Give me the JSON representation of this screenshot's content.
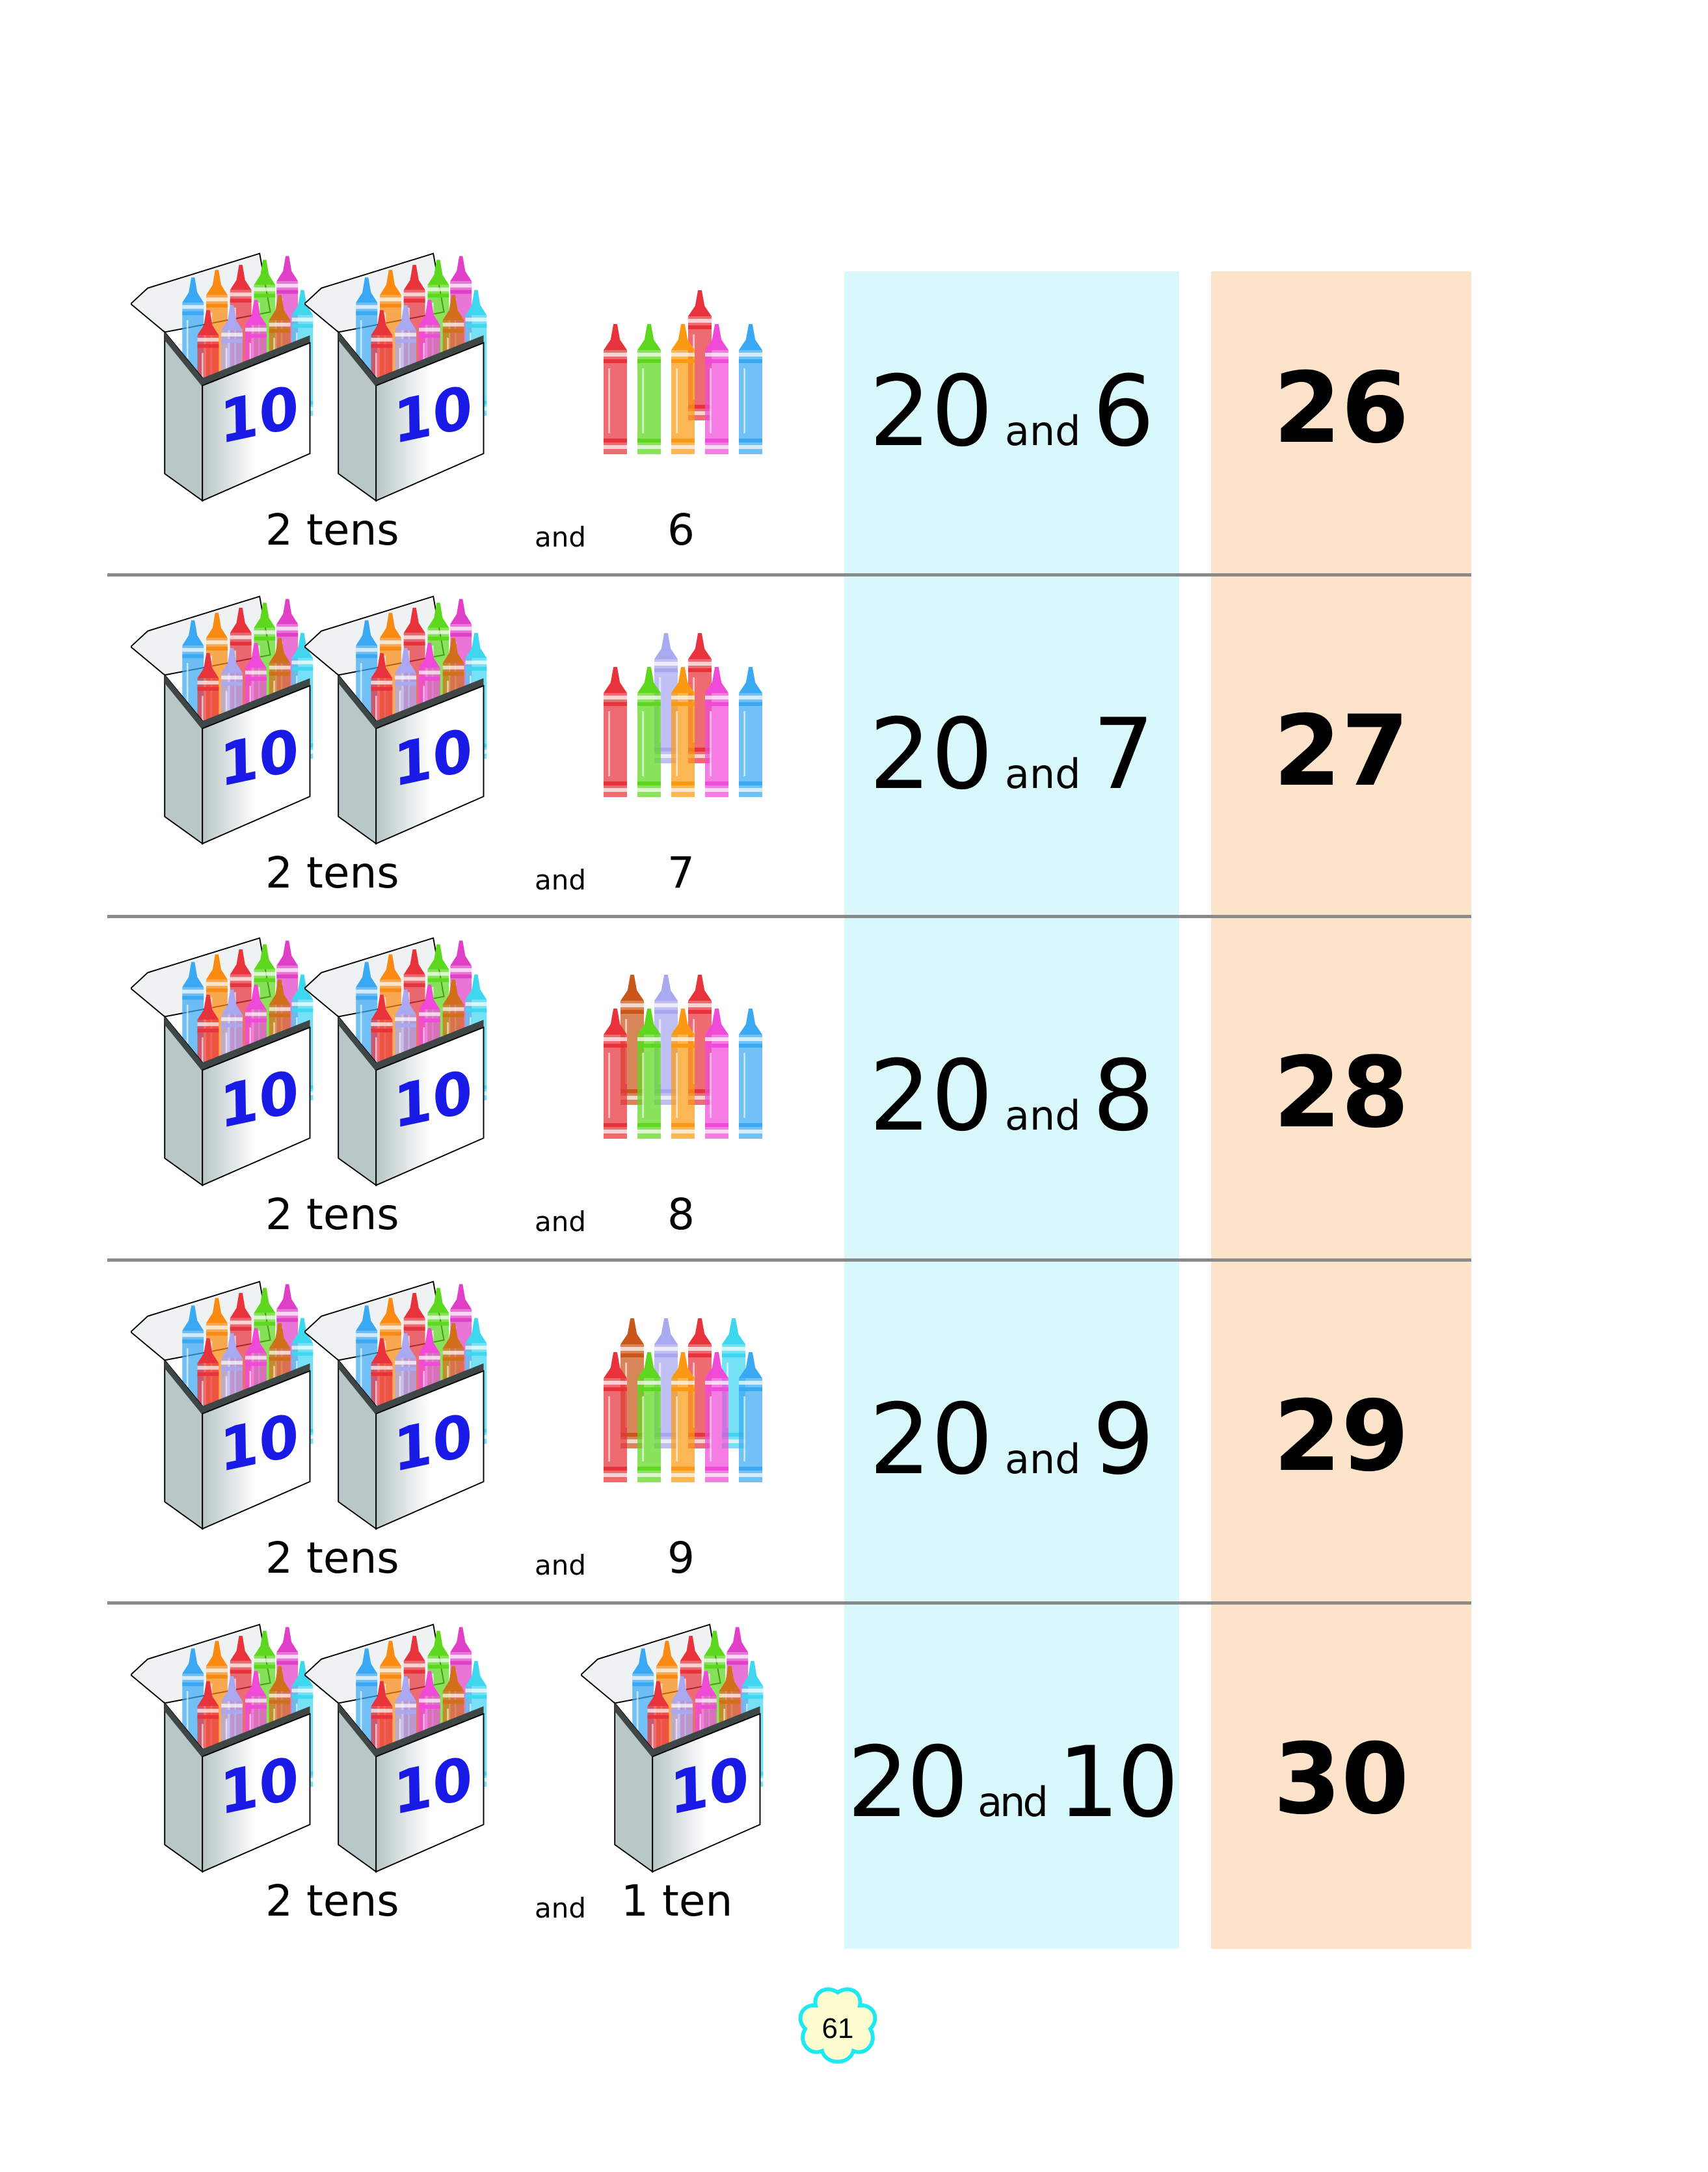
{
  "rows": [
    {
      "tens_label": "2 tens",
      "and_label": "and",
      "ones_label": "6",
      "tens_value": "20",
      "ones_value": "6",
      "total": "26",
      "box_number": "10",
      "front_crayons": [
        "#e8323c",
        "#5ed81e",
        "#fb9a12",
        "#f04ad8",
        "#3aa8f2"
      ],
      "back_crayons": [
        "#e8323c"
      ]
    },
    {
      "tens_label": "2 tens",
      "and_label": "and",
      "ones_label": "7",
      "tens_value": "20",
      "ones_value": "7",
      "total": "27",
      "box_number": "10",
      "front_crayons": [
        "#e8323c",
        "#5ed81e",
        "#fb9a12",
        "#f04ad8",
        "#3aa8f2"
      ],
      "back_crayons": [
        "#a9a8f0",
        "#e8323c"
      ]
    },
    {
      "tens_label": "2 tens",
      "and_label": "and",
      "ones_label": "8",
      "tens_value": "20",
      "ones_value": "8",
      "total": "28",
      "box_number": "10",
      "front_crayons": [
        "#e8323c",
        "#5ed81e",
        "#fb9a12",
        "#f04ad8",
        "#3aa8f2"
      ],
      "back_crayons": [
        "#c9561a",
        "#a9a8f0",
        "#e8323c"
      ]
    },
    {
      "tens_label": "2 tens",
      "and_label": "and",
      "ones_label": "9",
      "tens_value": "20",
      "ones_value": "9",
      "total": "29",
      "box_number": "10",
      "front_crayons": [
        "#e8323c",
        "#5ed81e",
        "#fb9a12",
        "#f04ad8",
        "#3aa8f2"
      ],
      "back_crayons": [
        "#c9561a",
        "#a9a8f0",
        "#e8323c",
        "#3fd6f0"
      ]
    },
    {
      "tens_label": "2 tens",
      "and_label": "and",
      "ones_label": "1 ten",
      "tens_value": "20",
      "ones_value": "10",
      "total": "30",
      "box_number": "10",
      "front_crayons": [],
      "back_crayons": []
    }
  ],
  "page_number": "61",
  "colors": {
    "tens_column": "#d8f8fb",
    "total_column": "#fde3c9",
    "box_number": "#1a1ae6",
    "page_badge_fill": "#fdfdd0",
    "page_badge_border": "#1ee8f0"
  }
}
